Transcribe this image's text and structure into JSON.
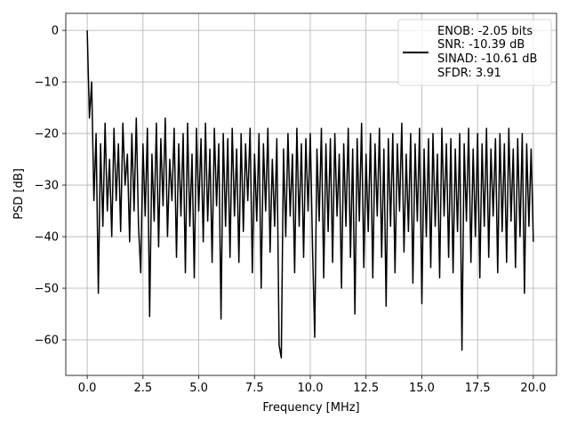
{
  "chart_data": {
    "type": "line",
    "title": "",
    "xlabel": "Frequency [MHz]",
    "ylabel": "PSD [dB]",
    "xlim": [
      -0.96,
      21.04
    ],
    "ylim": [
      -66.9,
      3.3
    ],
    "xticks": [
      0.0,
      2.5,
      5.0,
      7.5,
      10.0,
      12.5,
      15.0,
      17.5,
      20.0
    ],
    "xtick_labels": [
      "0.0",
      "2.5",
      "5.0",
      "7.5",
      "10.0",
      "12.5",
      "15.0",
      "17.5",
      "20.0"
    ],
    "yticks": [
      0,
      -10,
      -20,
      -30,
      -40,
      -50,
      -60
    ],
    "ytick_labels": [
      "0",
      "−10",
      "−20",
      "−30",
      "−40",
      "−50",
      "−60"
    ],
    "grid": true,
    "legend_placement": "upper-right",
    "line_color": "#000000",
    "legend": {
      "lines": [
        "ENOB: -2.05 bits",
        "SNR: -10.39 dB",
        "SINAD: -10.61 dB",
        "SFDR: 3.91"
      ]
    },
    "series": [
      {
        "x": [
          0.0,
          0.1,
          0.2,
          0.3,
          0.4,
          0.5,
          0.6,
          0.7,
          0.8,
          0.9,
          1.0,
          1.1,
          1.2,
          1.3,
          1.4,
          1.5,
          1.6,
          1.7,
          1.8,
          1.9,
          2.0,
          2.1,
          2.2,
          2.3,
          2.4,
          2.5,
          2.6,
          2.7,
          2.8,
          2.9,
          3.0,
          3.1,
          3.2,
          3.3,
          3.4,
          3.5,
          3.6,
          3.7,
          3.8,
          3.9,
          4.0,
          4.1,
          4.2,
          4.3,
          4.4,
          4.5,
          4.6,
          4.7,
          4.8,
          4.9,
          5.0,
          5.1,
          5.2,
          5.3,
          5.4,
          5.5,
          5.6,
          5.7,
          5.8,
          5.9,
          6.0,
          6.1,
          6.2,
          6.3,
          6.4,
          6.5,
          6.6,
          6.7,
          6.8,
          6.9,
          7.0,
          7.1,
          7.2,
          7.3,
          7.4,
          7.5,
          7.6,
          7.7,
          7.8,
          7.9,
          8.0,
          8.1,
          8.2,
          8.3,
          8.4,
          8.5,
          8.6,
          8.7,
          8.8,
          8.9,
          9.0,
          9.1,
          9.2,
          9.3,
          9.4,
          9.5,
          9.6,
          9.7,
          9.8,
          9.9,
          10.0,
          10.1,
          10.2,
          10.3,
          10.4,
          10.5,
          10.6,
          10.7,
          10.8,
          10.9,
          11.0,
          11.1,
          11.2,
          11.3,
          11.4,
          11.5,
          11.6,
          11.7,
          11.8,
          11.9,
          12.0,
          12.1,
          12.2,
          12.3,
          12.4,
          12.5,
          12.6,
          12.7,
          12.8,
          12.9,
          13.0,
          13.1,
          13.2,
          13.3,
          13.4,
          13.5,
          13.6,
          13.7,
          13.8,
          13.9,
          14.0,
          14.1,
          14.2,
          14.3,
          14.4,
          14.5,
          14.6,
          14.7,
          14.8,
          14.9,
          15.0,
          15.1,
          15.2,
          15.3,
          15.4,
          15.5,
          15.6,
          15.7,
          15.8,
          15.9,
          16.0,
          16.1,
          16.2,
          16.3,
          16.4,
          16.5,
          16.6,
          16.7,
          16.8,
          16.9,
          17.0,
          17.1,
          17.2,
          17.3,
          17.4,
          17.5,
          17.6,
          17.7,
          17.8,
          17.9,
          18.0,
          18.1,
          18.2,
          18.3,
          18.4,
          18.5,
          18.6,
          18.7,
          18.8,
          18.9,
          19.0,
          19.1,
          19.2,
          19.3,
          19.4,
          19.5,
          19.6,
          19.7,
          19.8,
          19.9,
          20.0
        ],
        "y": [
          0,
          -17,
          -10,
          -33,
          -20,
          -51,
          -22,
          -38,
          -18,
          -35,
          -25,
          -40,
          -19,
          -33,
          -22,
          -39,
          -18,
          -30,
          -24,
          -41,
          -20,
          -35,
          -17,
          -38,
          -47,
          -22,
          -36,
          -19,
          -55.5,
          -24,
          -37,
          -18,
          -42,
          -21,
          -34,
          -17,
          -40,
          -25,
          -33,
          -19,
          -44,
          -22,
          -36,
          -20,
          -47,
          -18,
          -38,
          -24,
          -48,
          -19,
          -35,
          -21,
          -41,
          -18,
          -37,
          -23,
          -45,
          -19,
          -34,
          -22,
          -56,
          -20,
          -38,
          -21,
          -44,
          -19,
          -36,
          -23,
          -45,
          -20,
          -39,
          -22,
          -33,
          -19,
          -47,
          -24,
          -37,
          -20,
          -50,
          -22,
          -35,
          -19,
          -43,
          -25,
          -38,
          -21,
          -61,
          -63.5,
          -23,
          -40,
          -20,
          -36,
          -24,
          -47,
          -19,
          -38,
          -22,
          -44,
          -21,
          -35,
          -20,
          -42,
          -59.5,
          -23,
          -37,
          -19,
          -48,
          -22,
          -39,
          -21,
          -45,
          -20,
          -36,
          -24,
          -50,
          -22,
          -38,
          -19,
          -44,
          -23,
          -55,
          -21,
          -37,
          -18,
          -46,
          -24,
          -39,
          -20,
          -48,
          -22,
          -36,
          -19,
          -44,
          -23,
          -53.5,
          -21,
          -38,
          -20,
          -47,
          -22,
          -35,
          -18,
          -43,
          -24,
          -39,
          -20,
          -49,
          -22,
          -37,
          -19,
          -53,
          -23,
          -40,
          -21,
          -46,
          -20,
          -38,
          -24,
          -48,
          -19,
          -36,
          -22,
          -44,
          -21,
          -47,
          -23,
          -39,
          -20,
          -62,
          -22,
          -37,
          -19,
          -45,
          -23,
          -40,
          -20,
          -48,
          -22,
          -38,
          -19,
          -44,
          -23,
          -36,
          -21,
          -47,
          -20,
          -39,
          -22,
          -45,
          -19,
          -37,
          -23,
          -46,
          -21,
          -40,
          -20,
          -51,
          -22,
          -38,
          -23,
          -41
        ]
      }
    ]
  }
}
